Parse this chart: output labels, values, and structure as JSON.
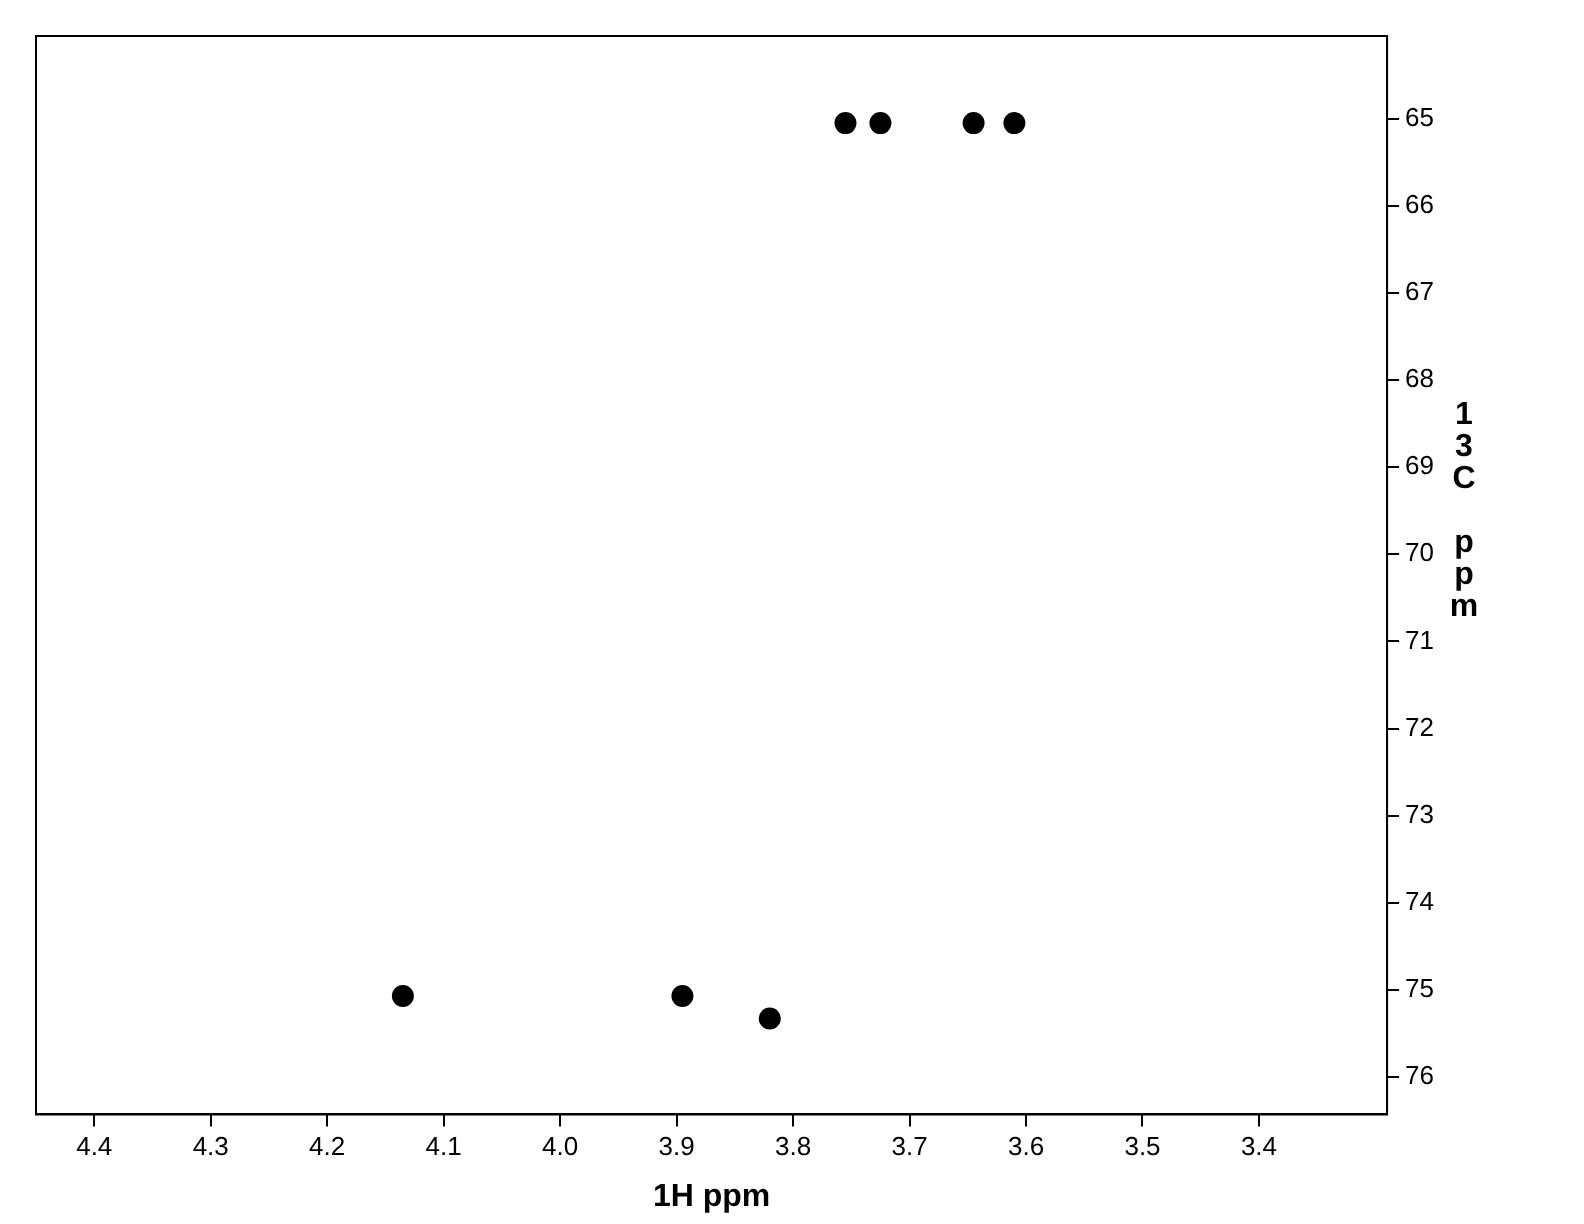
{
  "chart_data": {
    "type": "scatter",
    "xlabel": "1H ppm",
    "ylabel": "13C ppm",
    "x": [
      4.135,
      3.895,
      3.82,
      3.755,
      3.725,
      3.645,
      3.61
    ],
    "series": [
      {
        "color": "#000000",
        "values": [
          75.07,
          75.07,
          75.33,
          65.05,
          65.05,
          65.05,
          65.05
        ]
      }
    ],
    "xlim": [
      4.45,
      3.29
    ],
    "ylim": [
      76.43,
      64.05
    ],
    "xticks": [
      4.4,
      4.3,
      4.2,
      4.1,
      {
        "value": 4.0,
        "label": "4.0"
      },
      3.9,
      3.8,
      3.7,
      3.6,
      3.5,
      3.4
    ],
    "yticks": [
      65,
      66,
      67,
      68,
      69,
      70,
      71,
      72,
      73,
      74,
      75,
      76
    ],
    "grid": false,
    "legend": false,
    "marker": "circle"
  }
}
